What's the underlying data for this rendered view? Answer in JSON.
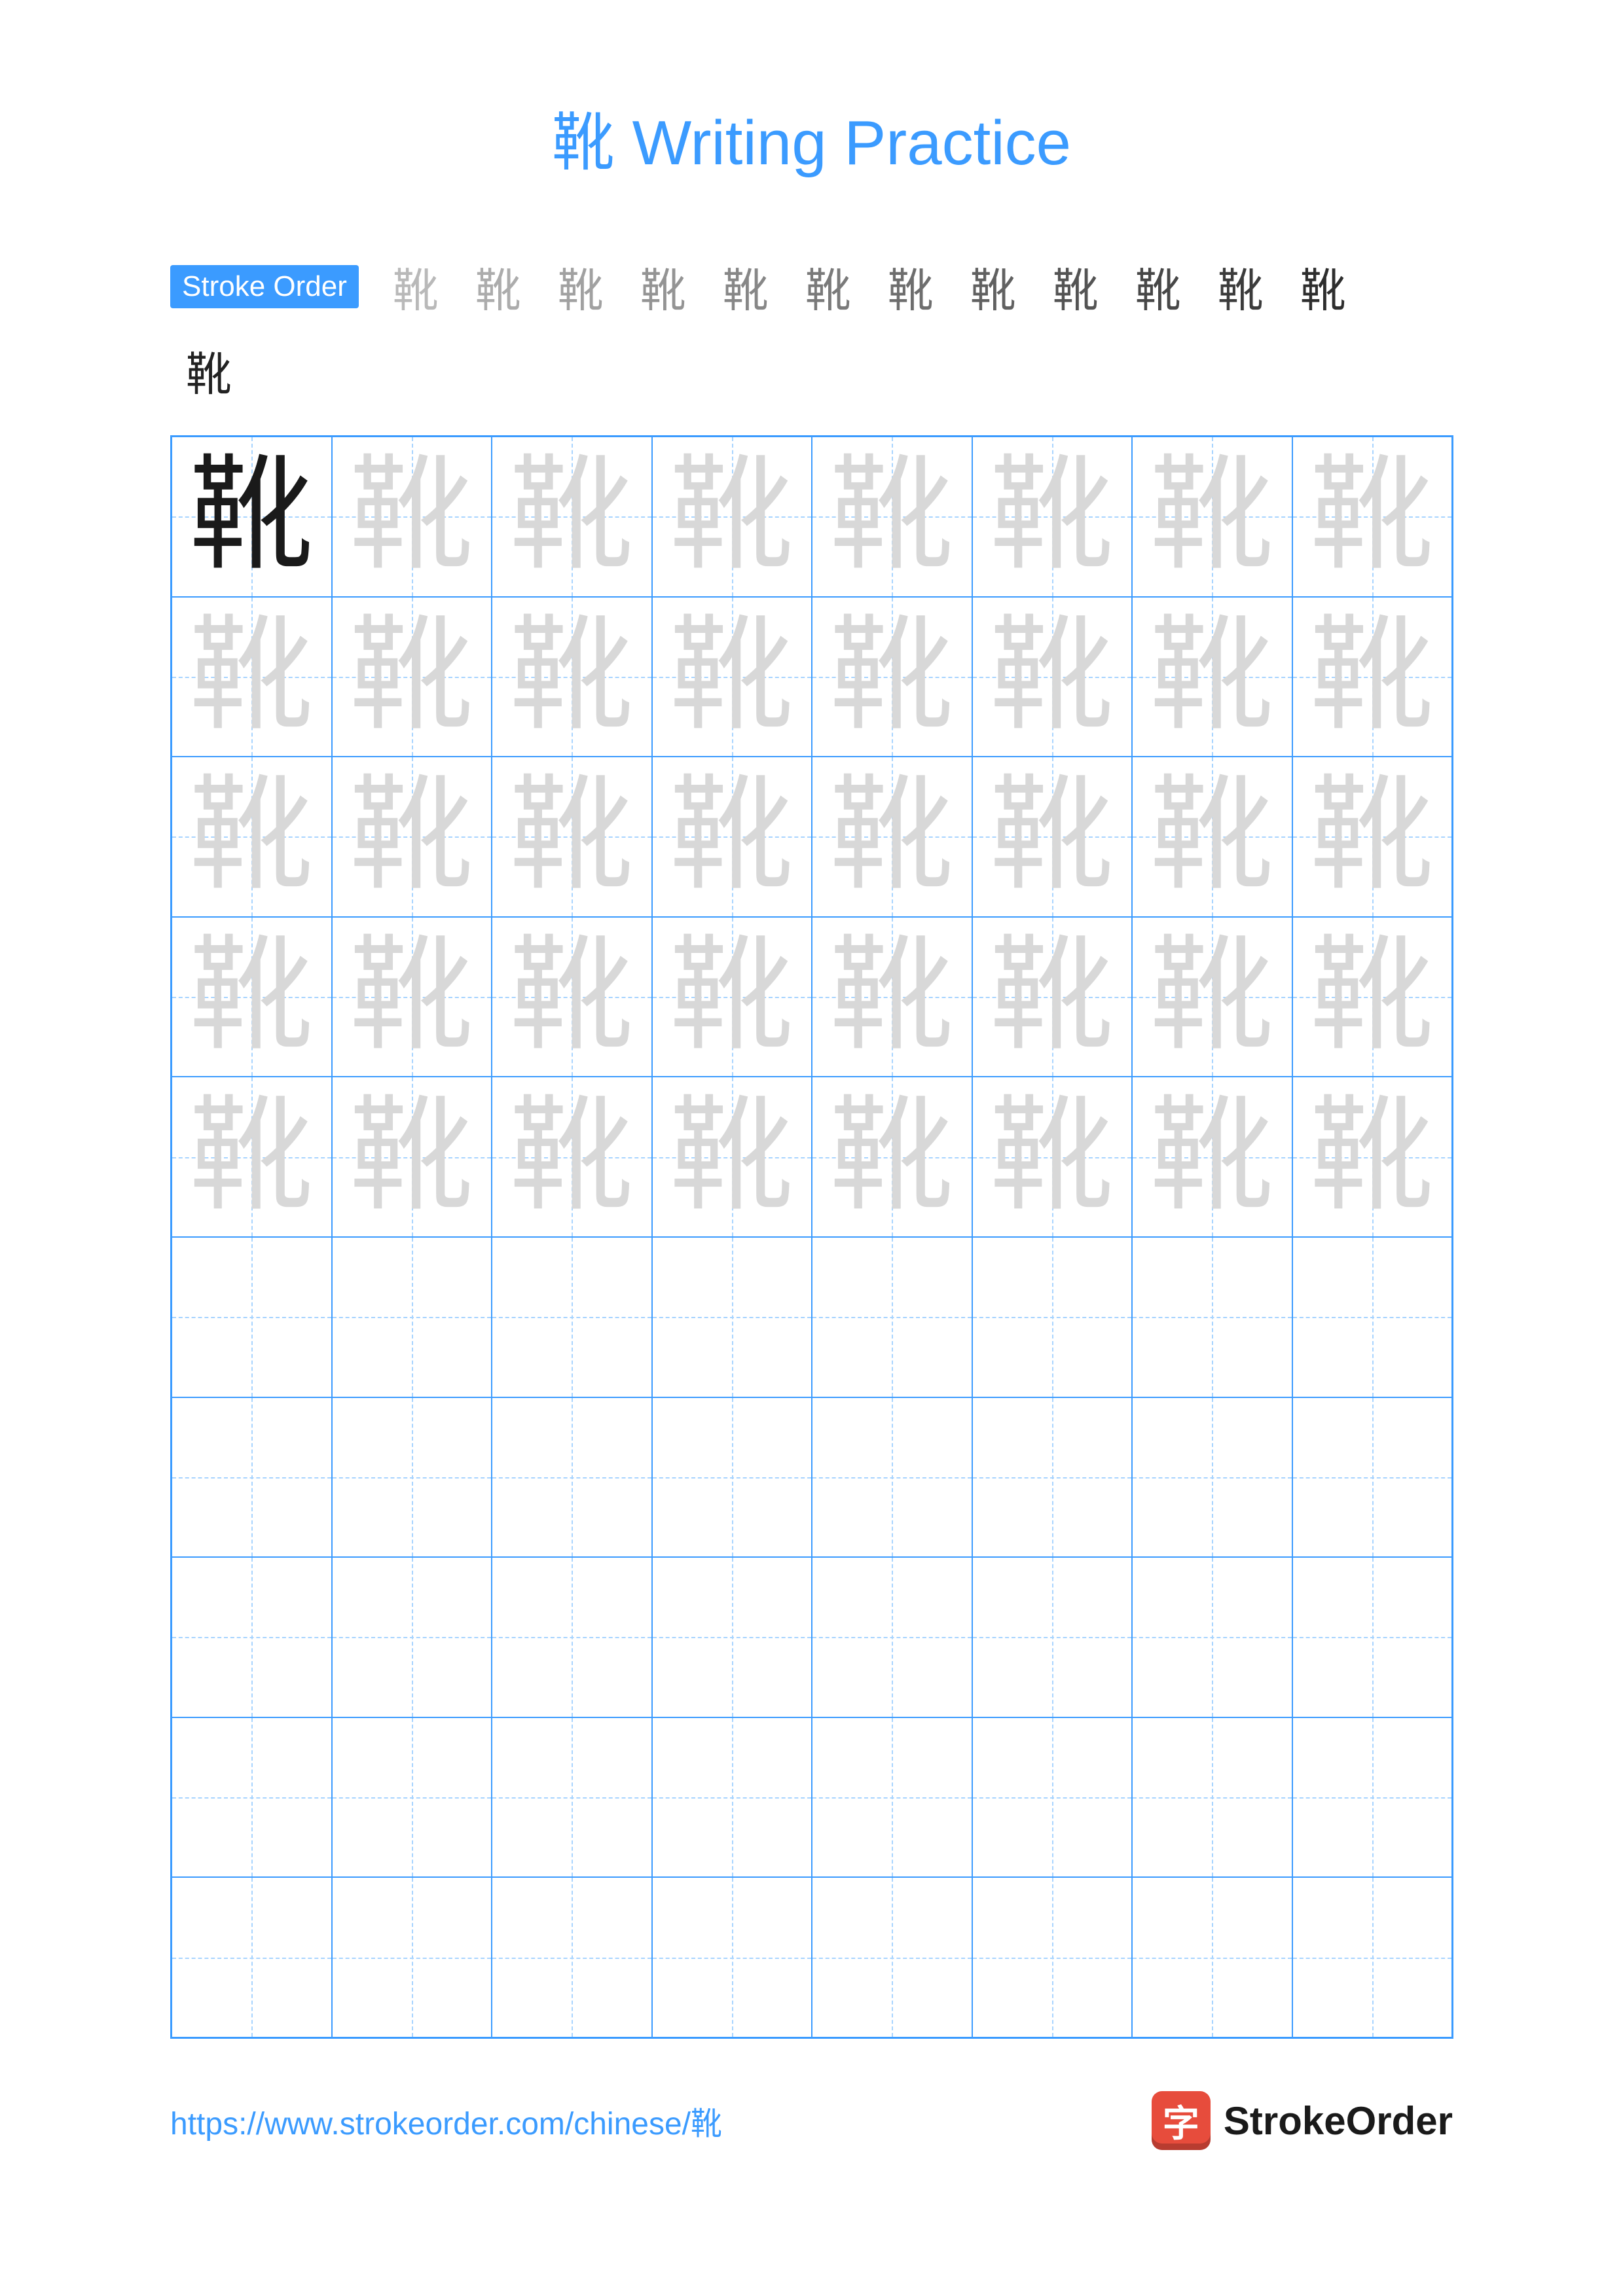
{
  "title_char": "靴",
  "title_rest": " Writing Practice",
  "title_color": "#3b9bff",
  "stroke_order_label": "Stroke Order",
  "character": "靴",
  "stroke_steps_count": 13,
  "grid": {
    "cols": 8,
    "rows": 10,
    "trace_rows": 5,
    "empty_rows": 5,
    "border_color": "#3b9bff",
    "guide_color": "#a8d4ff",
    "dark_char_color": "#1a1a1a",
    "light_char_color": "#d8d8d8"
  },
  "footer_url": "https://www.strokeorder.com/chinese/靴",
  "logo_char": "字",
  "logo_text": "StrokeOrder",
  "colors": {
    "accent": "#3b9bff",
    "logo_bg": "#e74c3c",
    "text": "#1a1a1a"
  }
}
